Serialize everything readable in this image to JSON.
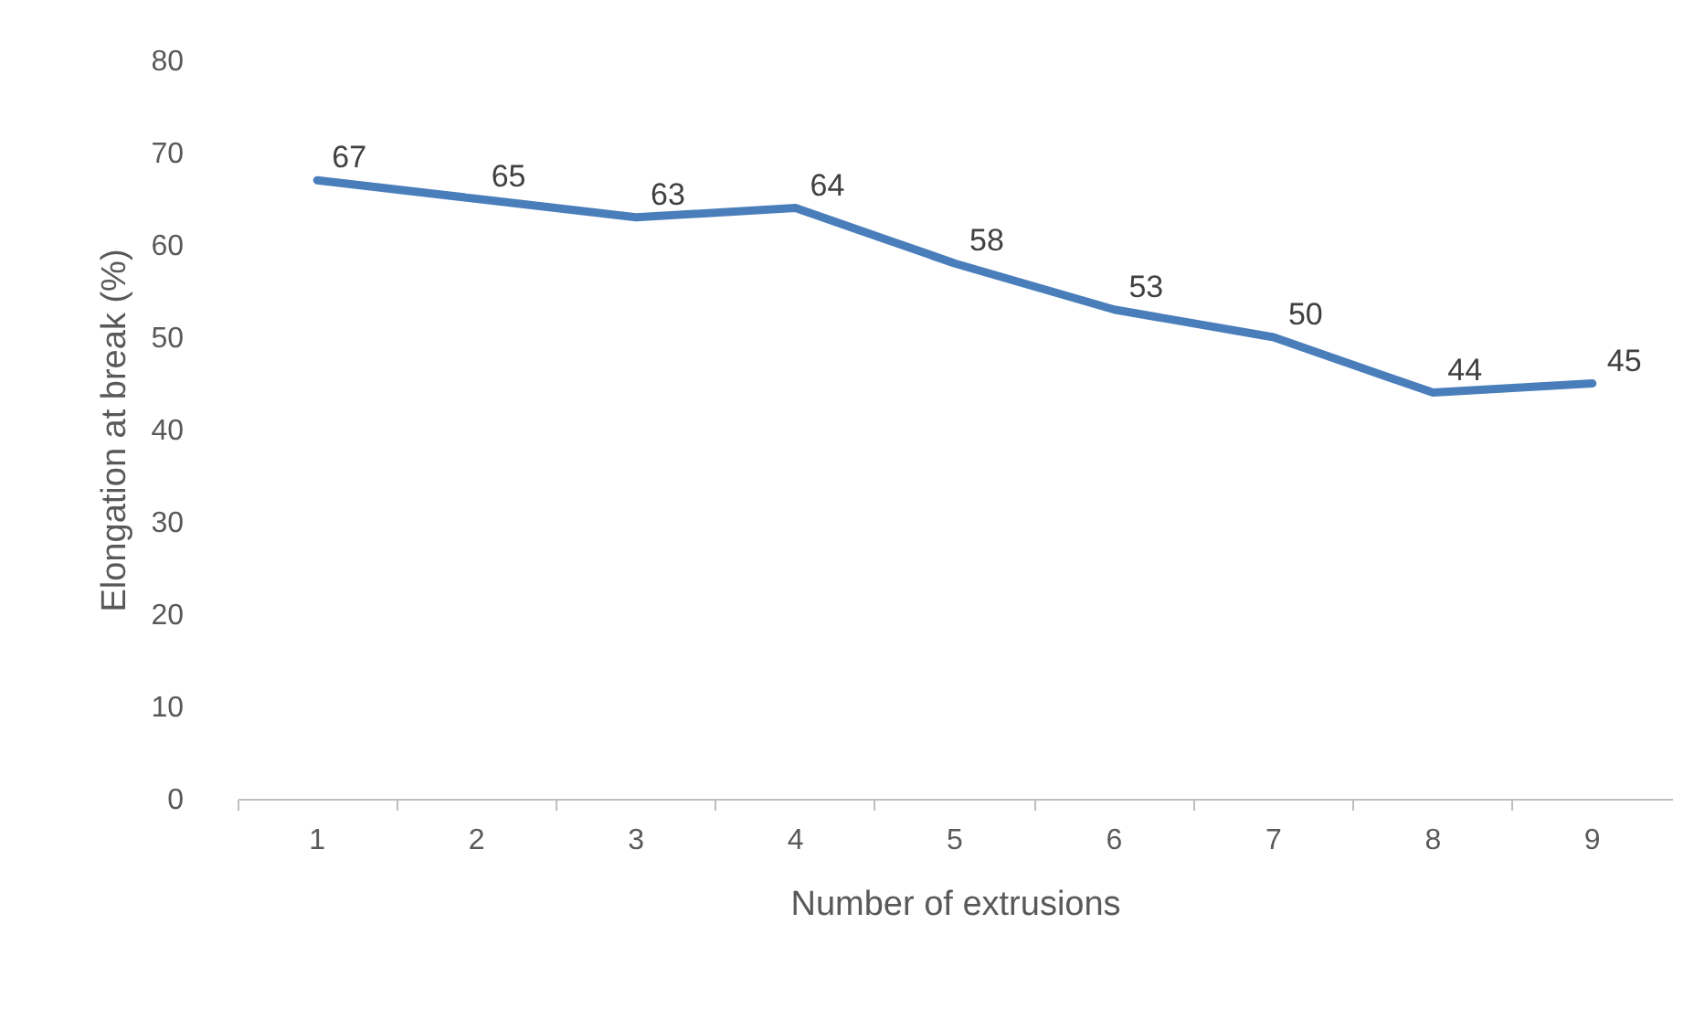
{
  "chart_data": {
    "type": "line",
    "xlabel": "Number of extrusions",
    "ylabel": "Elongation at break (%)",
    "categories": [
      "1",
      "2",
      "3",
      "4",
      "5",
      "6",
      "7",
      "8",
      "9"
    ],
    "series": [
      {
        "color": "#4a7ebb",
        "values": [
          67,
          65,
          63,
          64,
          58,
          53,
          50,
          44,
          45
        ]
      }
    ],
    "ylim": [
      0,
      80
    ],
    "yticks": [
      0,
      10,
      20,
      30,
      40,
      50,
      60,
      70,
      80
    ],
    "grid": false,
    "marker": "none",
    "line_style": "solid",
    "data_labels": true
  }
}
